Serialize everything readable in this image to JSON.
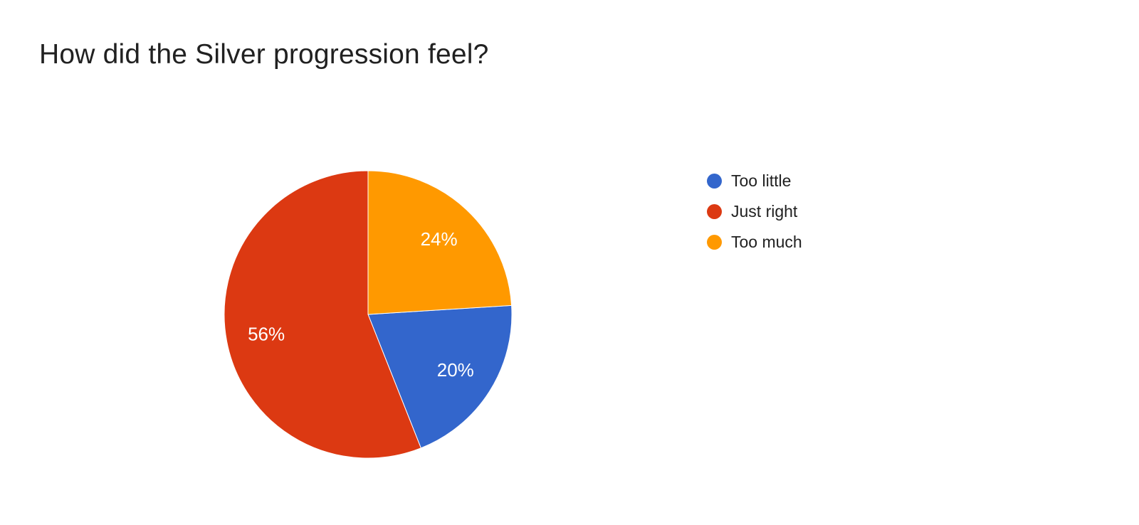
{
  "chart_data": {
    "type": "pie",
    "title": "How did the Silver progression feel?",
    "categories": [
      "Too little",
      "Just right",
      "Too much"
    ],
    "values": [
      20,
      56,
      24
    ],
    "slice_labels": [
      "20%",
      "56%",
      "24%"
    ],
    "colors": [
      "#3366cc",
      "#dc3912",
      "#ff9900"
    ],
    "slice_label_color": "#ffffff",
    "legend_position": "right",
    "start_angle_deg": 86.4,
    "title_color": "#212121",
    "background": "#ffffff"
  }
}
